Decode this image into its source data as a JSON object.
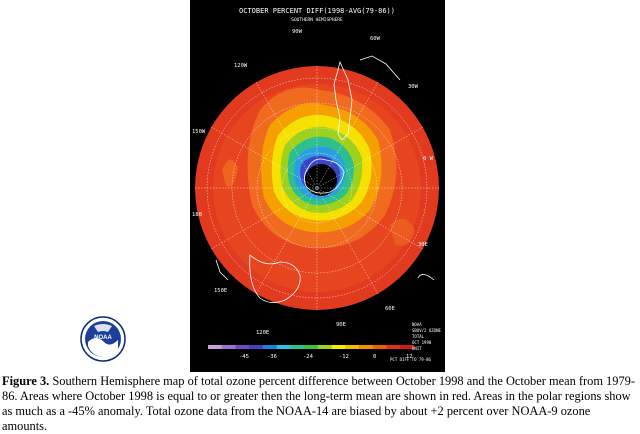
{
  "map": {
    "title": "OCTOBER PERCENT DIFF(1998-AVG(79-86))",
    "subtitle": "SOUTHERN HEMISPHERE",
    "longitude_labels": {
      "top": "90W",
      "top_right": "60W",
      "upper_right": "30W",
      "right": "0 W",
      "lower_right": "30E",
      "bottom_right": "60E",
      "bottom": "90E",
      "bottom_left": "120E",
      "left": "180",
      "upper_left": "150W",
      "top_left": "120W"
    },
    "colorbar": {
      "ticks": [
        "-45",
        "-36",
        "-24",
        "-12",
        "0",
        "12"
      ],
      "colors": [
        "#c8a0d8",
        "#a070d0",
        "#7048c0",
        "#4040c0",
        "#2080e0",
        "#30c0e0",
        "#30c090",
        "#40c040",
        "#a0d020",
        "#f0f000",
        "#f0c000",
        "#f09000",
        "#f06000",
        "#e03020",
        "#d01818"
      ]
    },
    "info_block": [
      "NOAA",
      "SBUV/2 OZONE",
      "TOTAL",
      "OCT 1998",
      "UNIT",
      "PCT DIFF TO 79-86"
    ]
  },
  "logo": {
    "text": "NOAA"
  },
  "caption": {
    "label": "Figure 3.",
    "text": " Southern Hemisphere map of total ozone percent difference between October 1998 and the October mean from 1979-86.  Areas where October 1998 is equal to or greater then the long-term mean are shown in red.  Areas in the polar regions show as much as a -45% anomaly.  Total ozone data from the NOAA-14 are biased by about +2 percent over NOAA-9 ozone amounts."
  }
}
